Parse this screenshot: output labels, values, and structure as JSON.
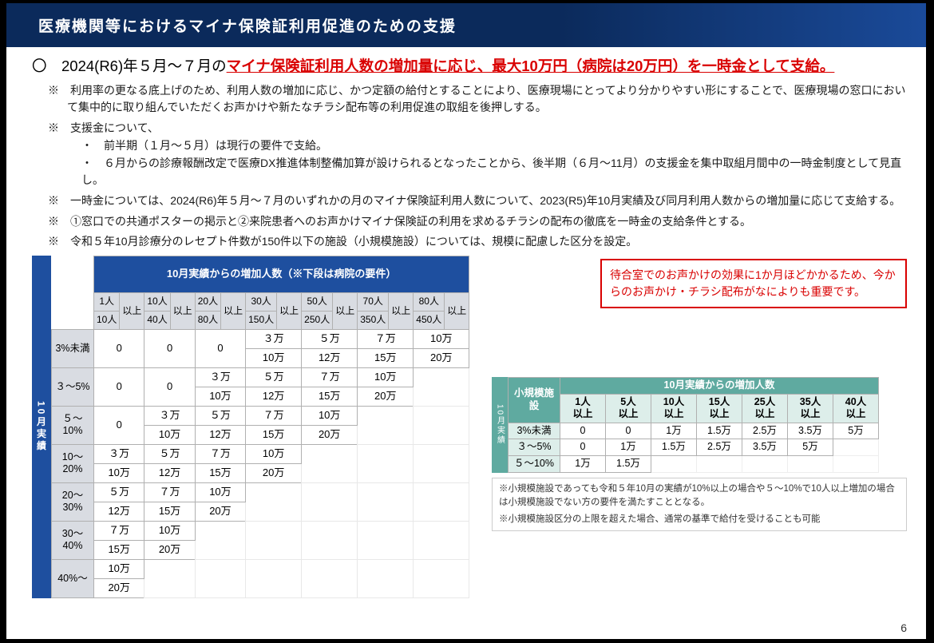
{
  "title": "医療機関等におけるマイナ保険証利用促進のための支援",
  "lead_prefix": "〇　2024(R6)年５月～７月の",
  "lead_red": "マイナ保険証利用人数の増加量に応じ、最大10万円（病院は20万円）を一時金として支給。",
  "notes": {
    "n1": "※　利用率の更なる底上げのため、利用人数の増加に応じ、かつ定額の給付とすることにより、医療現場にとってより分かりやすい形にすることで、医療現場の窓口において集中的に取り組んでいただくお声かけや新たなチラシ配布等の利用促進の取組を後押しする。",
    "n2a": "※　支援金について、",
    "n2b": "・　前半期（１月～５月）は現行の要件で支給。",
    "n2c": "・　６月からの診療報酬改定で医療DX推進体制整備加算が設けられるとなったことから、後半期（６月～11月）の支援金を集中取組月間中の一時金制度として見直し。",
    "n3": "※　一時金については、2024(R6)年５月～７月のいずれかの月のマイナ保険証利用人数について、2023(R5)年10月実績及び同月利用人数からの増加量に応じて支給する。",
    "n4": "※　①窓口での共通ポスターの掲示と②来院患者へのお声かけマイナ保険証の利用を求めるチラシの配布の徹底を一時金の支給条件とする。",
    "n5": "※　令和５年10月診療分のレセプト件数が150件以下の施設（小規模施設）については、規模に配慮した区分を設定。"
  },
  "main_table": {
    "top_header": "10月実績からの増加人数（※下段は病院の要件）",
    "side_label": "10月実績",
    "col_top": [
      "1人",
      "10人",
      "20人",
      "30人",
      "50人",
      "70人",
      "80人"
    ],
    "col_mid": [
      "以上",
      "以上",
      "以上",
      "以上",
      "以上",
      "以上",
      "以上"
    ],
    "col_bot": [
      "10人",
      "40人",
      "80人",
      "150人",
      "250人",
      "350人",
      "450人"
    ],
    "col_bot_suffix": "以上",
    "row_labels": [
      "3%未満",
      "３～5%",
      "５～10%",
      "10～20%",
      "20～30%",
      "30～40%",
      "40%～"
    ],
    "rows": [
      {
        "top": [
          "0",
          "0",
          "0",
          "３万",
          "５万",
          "７万",
          "10万"
        ],
        "bot": [
          "",
          "",
          "",
          "10万",
          "12万",
          "15万",
          "20万"
        ]
      },
      {
        "top": [
          "0",
          "0",
          "３万",
          "５万",
          "７万",
          "10万",
          ""
        ],
        "bot": [
          "",
          "",
          "10万",
          "12万",
          "15万",
          "20万",
          ""
        ]
      },
      {
        "top": [
          "0",
          "３万",
          "５万",
          "７万",
          "10万",
          "",
          ""
        ],
        "bot": [
          "",
          "10万",
          "12万",
          "15万",
          "20万",
          "",
          ""
        ]
      },
      {
        "top": [
          "３万",
          "５万",
          "７万",
          "10万",
          "",
          "",
          ""
        ],
        "bot": [
          "10万",
          "12万",
          "15万",
          "20万",
          "",
          "",
          ""
        ]
      },
      {
        "top": [
          "５万",
          "７万",
          "10万",
          "",
          "",
          "",
          ""
        ],
        "bot": [
          "12万",
          "15万",
          "20万",
          "",
          "",
          "",
          ""
        ]
      },
      {
        "top": [
          "７万",
          "10万",
          "",
          "",
          "",
          "",
          ""
        ],
        "bot": [
          "15万",
          "20万",
          "",
          "",
          "",
          "",
          ""
        ]
      },
      {
        "top": [
          "10万",
          "",
          "",
          "",
          "",
          "",
          ""
        ],
        "bot": [
          "20万",
          "",
          "",
          "",
          "",
          "",
          ""
        ]
      }
    ]
  },
  "callout": "待合室でのお声かけの効果に1か月ほどかかるため、今からのお声かけ・チラシ配布がなによりも重要です。",
  "small_table": {
    "corner": "小規模施設",
    "side_label": "10月実績",
    "top_header": "10月実績からの増加人数",
    "cols": [
      "1人以上",
      "5人以上",
      "10人以上",
      "15人以上",
      "25人以上",
      "35人以上",
      "40人以上"
    ],
    "rows": [
      {
        "label": "3%未満",
        "vals": [
          "0",
          "0",
          "1万",
          "1.5万",
          "2.5万",
          "3.5万",
          "5万"
        ]
      },
      {
        "label": "３～5%",
        "vals": [
          "0",
          "1万",
          "1.5万",
          "2.5万",
          "3.5万",
          "5万",
          ""
        ]
      },
      {
        "label": "５～10%",
        "vals": [
          "1万",
          "1.5万",
          "",
          "",
          "",
          "",
          ""
        ]
      }
    ],
    "note1": "※小規模施設であっても令和５年10月の実績が10%以上の場合や５～10%で10人以上増加の場合は小規模施設でない方の要件を満たすこととなる。",
    "note2": "※小規模施設区分の上限を超えた場合、通常の基準で給付を受けることも可能"
  },
  "page_number": "6"
}
